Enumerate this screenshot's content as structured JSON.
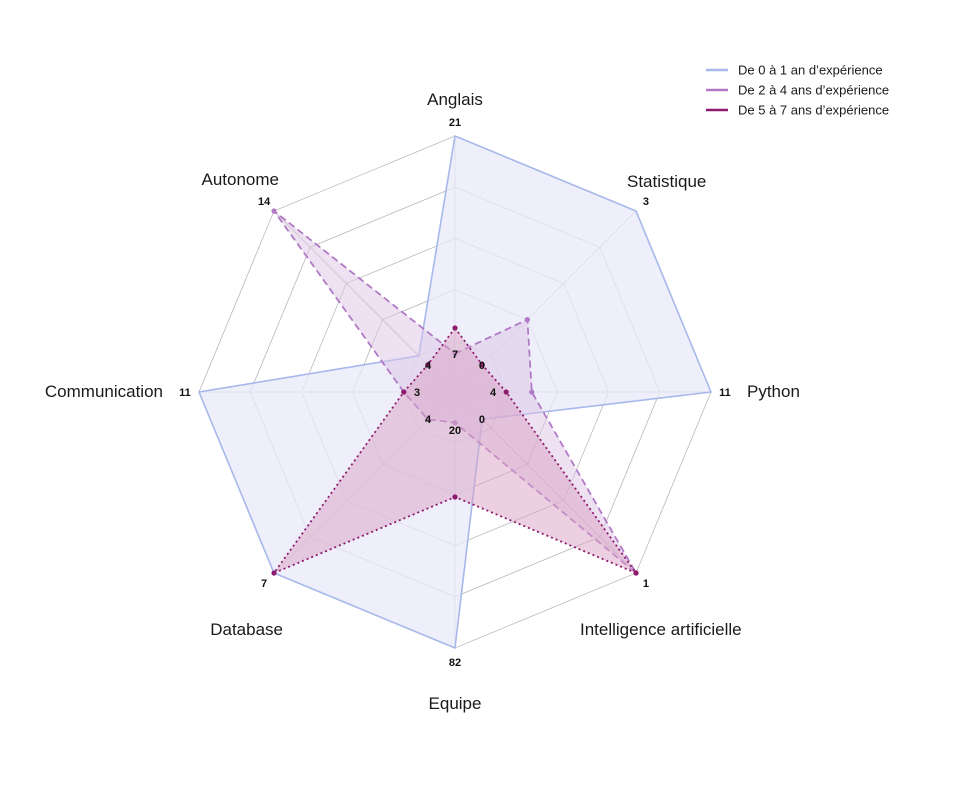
{
  "chart_data": {
    "type": "radar",
    "axes": [
      "Anglais",
      "Statistique",
      "Python",
      "Intelligence artificielle",
      "Equipe",
      "Database",
      "Communication",
      "Autonome"
    ],
    "max": 1,
    "legend_position": "top-right",
    "grid": true,
    "series": [
      {
        "name": "De 0 à 1 an d’expérience",
        "color": "#a8b8ea",
        "fill": "#e8eaf8",
        "line_style": "solid",
        "values": [
          1.0,
          1.0,
          1.0,
          0.15,
          1.0,
          1.0,
          1.0,
          0.2
        ],
        "labels": [
          "21",
          "3",
          "11",
          "1",
          "82",
          "7",
          "11",
          "14"
        ]
      },
      {
        "name": "De 2 à 4 ans d’expérience",
        "color": "#b07ac6",
        "fill": "#dcc4e6",
        "line_style": "dashed",
        "values": [
          0.15,
          0.4,
          0.3,
          1.0,
          0.12,
          0.15,
          0.2,
          1.0
        ],
        "labels": [
          "7",
          "0",
          "4",
          "0",
          "20",
          "4",
          "3",
          "4"
        ]
      },
      {
        "name": "De 5 à 7 ans d’expérience",
        "color": "#8e1a6e",
        "fill": "#d9a2c4",
        "line_style": "dotted",
        "values": [
          0.25,
          0.15,
          0.2,
          1.0,
          0.41,
          1.0,
          0.2,
          0.15
        ],
        "labels": []
      }
    ]
  }
}
